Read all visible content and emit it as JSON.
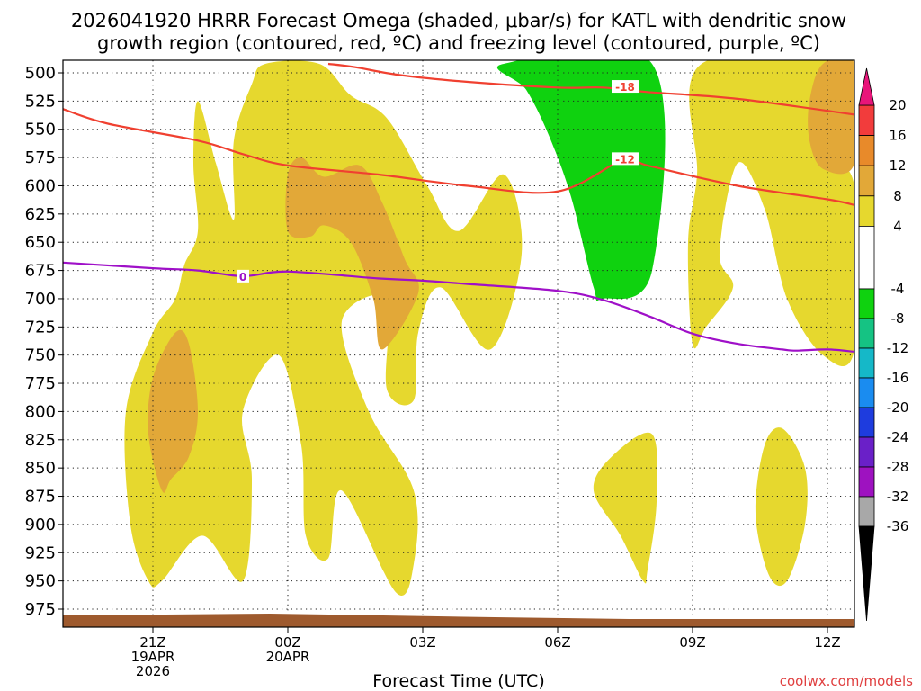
{
  "chart_data": {
    "type": "heatmap",
    "title_lines": [
      "2026041920 HRRR Forecast Omega (shaded, μbar/s) for KATL with dendritic snow",
      "growth region (contoured, red, ºC) and freezing level (contoured, purple, ºC)"
    ],
    "xlabel": "Forecast Time (UTC)",
    "credit": "coolwx.com/models",
    "x_range_hours": [
      -1,
      16.6
    ],
    "x_ticks": [
      {
        "h": 1,
        "label": "21Z",
        "sub": [
          "19APR",
          "2026"
        ]
      },
      {
        "h": 4,
        "label": "00Z",
        "sub": [
          "20APR"
        ]
      },
      {
        "h": 7,
        "label": "03Z",
        "sub": []
      },
      {
        "h": 10,
        "label": "06Z",
        "sub": []
      },
      {
        "h": 13,
        "label": "09Z",
        "sub": []
      },
      {
        "h": 16,
        "label": "12Z",
        "sub": []
      }
    ],
    "y_ticks": [
      500,
      525,
      550,
      575,
      600,
      625,
      650,
      675,
      700,
      725,
      750,
      775,
      800,
      825,
      850,
      875,
      900,
      925,
      950,
      975
    ],
    "y_range_hpa": [
      492,
      1000
    ],
    "colorbar": {
      "ticks": [
        20,
        16,
        12,
        8,
        4,
        -4,
        -8,
        -12,
        -16,
        -20,
        -24,
        -28,
        -32,
        -36
      ],
      "bands": [
        {
          "from": 16,
          "to": 20,
          "color": "#f23c3c"
        },
        {
          "from": 12,
          "to": 16,
          "color": "#e88a2a"
        },
        {
          "from": 8,
          "to": 12,
          "color": "#e2a838"
        },
        {
          "from": 4,
          "to": 8,
          "color": "#e6d82e"
        },
        {
          "from": -4,
          "to": 4,
          "color": "#ffffff"
        },
        {
          "from": -8,
          "to": -4,
          "color": "#0fd20f"
        },
        {
          "from": -12,
          "to": -8,
          "color": "#15c383"
        },
        {
          "from": -16,
          "to": -12,
          "color": "#15b8c8"
        },
        {
          "from": -20,
          "to": -16,
          "color": "#1a8cf0"
        },
        {
          "from": -24,
          "to": -20,
          "color": "#1e3cde"
        },
        {
          "from": -28,
          "to": -24,
          "color": "#6a20c8"
        },
        {
          "from": -32,
          "to": -28,
          "color": "#9e12c0"
        },
        {
          "from": -36,
          "to": -32,
          "color": "#a8a8a8"
        }
      ],
      "top_arrow_color": "#e8157a",
      "bottom_arrow_color": "#000000"
    },
    "omega_regions": [
      {
        "level": "4-8",
        "color": "#e6d82e",
        "points": [
          [
            0.9,
            950
          ],
          [
            0.5,
            900
          ],
          [
            0.4,
            800
          ],
          [
            1.0,
            730
          ],
          [
            1.5,
            700
          ],
          [
            1.7,
            670
          ],
          [
            2.0,
            640
          ],
          [
            1.9,
            580
          ],
          [
            2.0,
            525
          ],
          [
            2.4,
            580
          ],
          [
            2.8,
            630
          ],
          [
            2.8,
            560
          ],
          [
            3.2,
            510
          ],
          [
            3.5,
            492
          ],
          [
            4.7,
            492
          ],
          [
            5.4,
            520
          ],
          [
            6.2,
            540
          ],
          [
            7.1,
            600
          ],
          [
            7.8,
            640
          ],
          [
            8.8,
            590
          ],
          [
            9.2,
            660
          ],
          [
            8.5,
            745
          ],
          [
            7.4,
            690
          ],
          [
            6.9,
            730
          ],
          [
            6.8,
            790
          ],
          [
            6.2,
            780
          ],
          [
            6.2,
            700
          ],
          [
            5.2,
            720
          ],
          [
            5.8,
            800
          ],
          [
            6.8,
            870
          ],
          [
            6.8,
            935
          ],
          [
            6.4,
            960
          ],
          [
            5.2,
            870
          ],
          [
            4.9,
            930
          ],
          [
            4.4,
            910
          ],
          [
            4.3,
            830
          ],
          [
            3.8,
            750
          ],
          [
            3.0,
            800
          ],
          [
            3.2,
            860
          ],
          [
            3.0,
            950
          ],
          [
            2.1,
            910
          ],
          [
            1.2,
            950
          ]
        ]
      },
      {
        "level": "8-12",
        "color": "#e2a838",
        "points": [
          [
            1.2,
            870
          ],
          [
            0.9,
            820
          ],
          [
            1.0,
            770
          ],
          [
            1.5,
            730
          ],
          [
            1.8,
            740
          ],
          [
            2.0,
            800
          ],
          [
            1.8,
            840
          ],
          [
            1.4,
            860
          ]
        ]
      },
      {
        "level": "8-12",
        "color": "#e2a838",
        "points": [
          [
            4.0,
            640
          ],
          [
            4.0,
            590
          ],
          [
            4.3,
            575
          ],
          [
            4.8,
            592
          ],
          [
            5.6,
            582
          ],
          [
            6.1,
            615
          ],
          [
            6.6,
            665
          ],
          [
            6.9,
            695
          ],
          [
            6.1,
            745
          ],
          [
            5.9,
            700
          ],
          [
            5.4,
            650
          ],
          [
            4.8,
            635
          ],
          [
            4.5,
            645
          ]
        ]
      },
      {
        "level": "4-8",
        "color": "#e6d82e",
        "points": [
          [
            10.8,
            870
          ],
          [
            11.2,
            840
          ],
          [
            12.1,
            820
          ],
          [
            12.2,
            880
          ],
          [
            12.0,
            940
          ],
          [
            11.9,
            950
          ],
          [
            11.4,
            910
          ]
        ]
      },
      {
        "level": "4-8",
        "color": "#e6d82e",
        "points": [
          [
            14.7,
            945
          ],
          [
            14.4,
            890
          ],
          [
            14.6,
            830
          ],
          [
            15.0,
            815
          ],
          [
            15.5,
            850
          ],
          [
            15.5,
            900
          ],
          [
            15.1,
            950
          ]
        ]
      },
      {
        "level": "4-8",
        "color": "#e6d82e",
        "points": [
          [
            13.0,
            740
          ],
          [
            12.9,
            650
          ],
          [
            13.1,
            590
          ],
          [
            13.2,
            492
          ],
          [
            16.6,
            492
          ],
          [
            16.6,
            575
          ],
          [
            15.9,
            575
          ],
          [
            16.6,
            600
          ],
          [
            16.6,
            745
          ],
          [
            15.9,
            750
          ],
          [
            15.1,
            700
          ],
          [
            14.6,
            620
          ],
          [
            14.0,
            580
          ],
          [
            13.6,
            660
          ],
          [
            13.9,
            690
          ],
          [
            13.3,
            725
          ]
        ]
      },
      {
        "level": "8-12",
        "color": "#e2a838",
        "points": [
          [
            15.9,
            492
          ],
          [
            16.6,
            492
          ],
          [
            16.6,
            580
          ],
          [
            15.9,
            585
          ],
          [
            15.6,
            560
          ],
          [
            15.6,
            525
          ]
        ]
      },
      {
        "level": "-4--8",
        "color": "#0fd20f",
        "points": [
          [
            8.8,
            492
          ],
          [
            12.1,
            492
          ],
          [
            12.1,
            675
          ],
          [
            11.0,
            700
          ],
          [
            10.8,
            690
          ],
          [
            10.3,
            610
          ],
          [
            9.8,
            555
          ],
          [
            9.3,
            515
          ]
        ]
      }
    ],
    "dgz_contours": [
      {
        "value": -18,
        "label": "-18",
        "label_at": [
          11.5,
          512
        ],
        "color": "#f04030",
        "points": [
          [
            4.9,
            492
          ],
          [
            5.5,
            495
          ],
          [
            6.5,
            502
          ],
          [
            8.0,
            508
          ],
          [
            10.0,
            513
          ],
          [
            11.0,
            513
          ],
          [
            12.0,
            517
          ],
          [
            14.0,
            523
          ],
          [
            16.6,
            537
          ]
        ]
      },
      {
        "value": -12,
        "label": "-12",
        "label_at": [
          11.5,
          576
        ],
        "color": "#f04030",
        "points": [
          [
            -1.0,
            532
          ],
          [
            0.0,
            545
          ],
          [
            2.0,
            560
          ],
          [
            3.0,
            572
          ],
          [
            4.0,
            582
          ],
          [
            6.0,
            590
          ],
          [
            8.0,
            600
          ],
          [
            10.0,
            605
          ],
          [
            11.5,
            576
          ],
          [
            12.0,
            582
          ],
          [
            14.0,
            600
          ],
          [
            16.0,
            612
          ],
          [
            16.6,
            617
          ]
        ]
      },
      {
        "value": 0,
        "label": "0",
        "label_at": [
          3.0,
          680
        ],
        "color": "#9f10c8",
        "points": [
          [
            -1.0,
            668
          ],
          [
            1.0,
            673
          ],
          [
            2.0,
            675
          ],
          [
            3.0,
            680
          ],
          [
            4.0,
            676
          ],
          [
            6.0,
            682
          ],
          [
            7.0,
            684
          ],
          [
            8.0,
            687
          ],
          [
            10.0,
            693
          ],
          [
            11.0,
            701
          ],
          [
            12.0,
            715
          ],
          [
            13.0,
            731
          ],
          [
            14.0,
            740
          ],
          [
            15.0,
            745
          ],
          [
            15.3,
            746
          ],
          [
            16.0,
            745
          ],
          [
            16.6,
            747
          ]
        ]
      }
    ]
  }
}
